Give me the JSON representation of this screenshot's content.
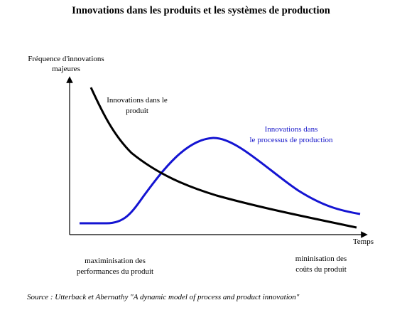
{
  "title": "Innovations dans les produits et les systèmes de production",
  "y_axis_label": [
    "Fréquence d'innovations",
    "majeures"
  ],
  "x_axis_label": "Temps",
  "product_curve_label": [
    "Innovations dans le",
    "produit"
  ],
  "process_curve_label": [
    "Innovations dans",
    "le processus de production"
  ],
  "left_note": [
    "maximinisation des",
    "performances du produit"
  ],
  "right_note": [
    "mininisation des",
    "coûts du produit"
  ],
  "source": "Source : Utterback et Abernathy \"A dynamic model of process and product innovation\"",
  "colors": {
    "product_curve": "#000000",
    "process_curve": "#1414d2",
    "process_label": "#1414c8"
  }
}
